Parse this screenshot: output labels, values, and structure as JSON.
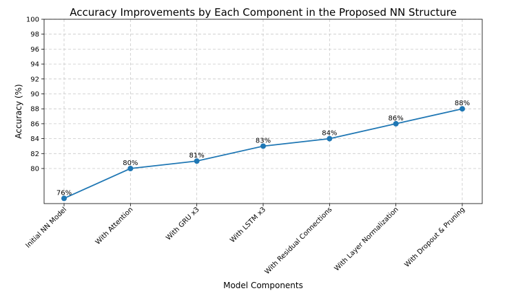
{
  "chart_data": {
    "type": "line",
    "title": "Accuracy Improvements by Each Component in the Proposed NN Structure",
    "xlabel": "Model Components",
    "ylabel": "Accuracy (%)",
    "categories": [
      "Initial NN Model",
      "With Attention",
      "With GRU x3",
      "With LSTM x3",
      "With Residual Connections",
      "With Layer Normalization",
      "With Dropout & Pruning"
    ],
    "series": [
      {
        "name": "Accuracy",
        "values": [
          76,
          80,
          81,
          83,
          84,
          86,
          88
        ],
        "color": "#1f77b4"
      }
    ],
    "data_labels": [
      "76%",
      "80%",
      "81%",
      "83%",
      "84%",
      "86%",
      "88%"
    ],
    "ylim": [
      75.3,
      100
    ],
    "yticks": [
      "80",
      "82",
      "84",
      "86",
      "88",
      "90",
      "92",
      "94",
      "96",
      "98",
      "100"
    ],
    "grid": true
  }
}
